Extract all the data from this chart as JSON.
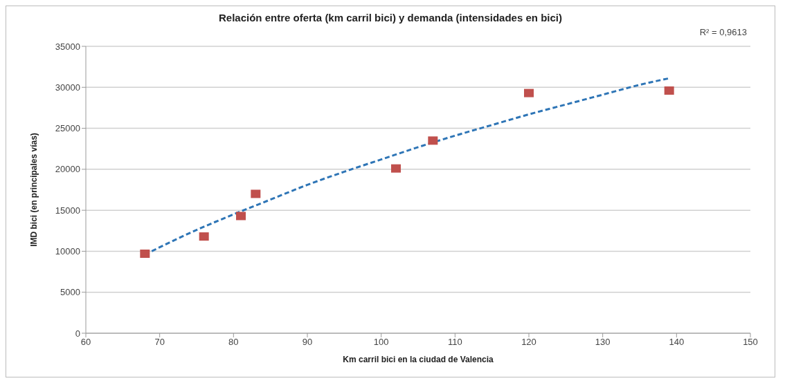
{
  "chart_data": {
    "type": "scatter",
    "title": "Relación entre oferta (km carril bici) y demanda (intensidades en bici)",
    "xlabel": "Km carril bici en la ciudad de Valencia",
    "ylabel": "IMD bici (en principales vías)",
    "annotations": [
      "R² = 0,9613"
    ],
    "xlim": [
      60,
      150
    ],
    "xticks": [
      60,
      70,
      80,
      90,
      100,
      110,
      120,
      130,
      140,
      150
    ],
    "ylim": [
      0,
      35000
    ],
    "yticks": [
      0,
      5000,
      10000,
      15000,
      20000,
      25000,
      30000,
      35000
    ],
    "grid": "y",
    "marker": "square",
    "series": [
      {
        "color": "#c0504d",
        "x": [
          68,
          76,
          81,
          83,
          102,
          107,
          120,
          139
        ],
        "values": [
          9700,
          11800,
          14300,
          17000,
          20100,
          23500,
          29300,
          29600
        ]
      },
      {
        "type": "line",
        "color": "#2e75b6",
        "line_style": "dashed",
        "marker": "none",
        "x": [
          68,
          75,
          80,
          85,
          90,
          95,
          100,
          105,
          110,
          115,
          120,
          125,
          130,
          135,
          139
        ],
        "values": [
          9600,
          12600,
          14500,
          16300,
          18100,
          19700,
          21200,
          22700,
          24100,
          25400,
          26700,
          27900,
          29100,
          30300,
          31100
        ]
      }
    ]
  }
}
